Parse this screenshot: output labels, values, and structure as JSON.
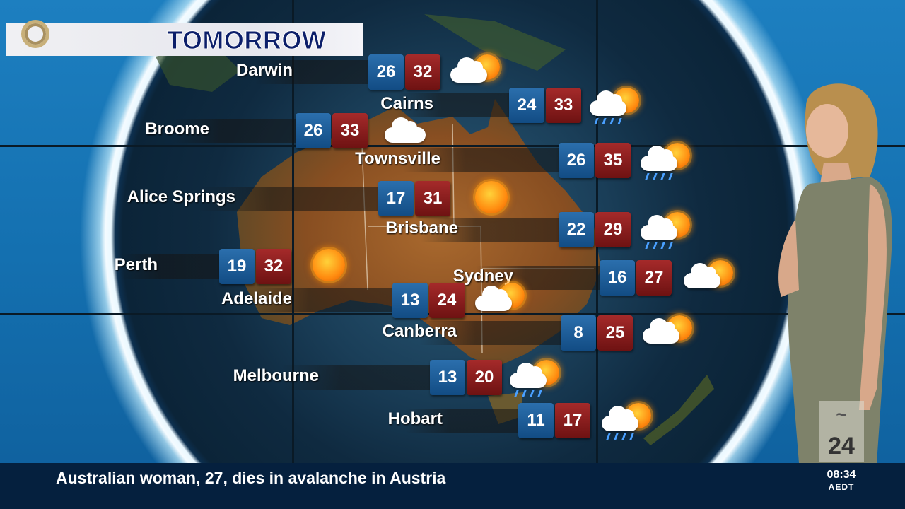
{
  "title": "TOMORROW",
  "cities": [
    {
      "name": "Darwin",
      "min": "26",
      "max": "32",
      "icon": "partly-cloudy-icon"
    },
    {
      "name": "Cairns",
      "min": "24",
      "max": "33",
      "icon": "showers-sun-icon"
    },
    {
      "name": "Broome",
      "min": "26",
      "max": "33",
      "icon": "cloudy-icon"
    },
    {
      "name": "Townsville",
      "min": "26",
      "max": "35",
      "icon": "showers-sun-icon"
    },
    {
      "name": "Alice Springs",
      "min": "17",
      "max": "31",
      "icon": "sunny-icon"
    },
    {
      "name": "Brisbane",
      "min": "22",
      "max": "29",
      "icon": "showers-sun-icon"
    },
    {
      "name": "Perth",
      "min": "19",
      "max": "32",
      "icon": "sunny-icon"
    },
    {
      "name": "Sydney",
      "min": "16",
      "max": "27",
      "icon": "partly-cloudy-icon"
    },
    {
      "name": "Adelaide",
      "min": "13",
      "max": "24",
      "icon": "partly-cloudy-icon"
    },
    {
      "name": "Canberra",
      "min": "8",
      "max": "25",
      "icon": "partly-cloudy-icon"
    },
    {
      "name": "Melbourne",
      "min": "13",
      "max": "20",
      "icon": "showers-sun-icon"
    },
    {
      "name": "Hobart",
      "min": "11",
      "max": "17",
      "icon": "showers-sun-icon"
    }
  ],
  "ticker": {
    "headline": "Australian woman, 27, dies in avalanche in Austria",
    "time": "08:34",
    "timezone": "AEDT"
  },
  "watermark": {
    "channel": "24"
  },
  "colors": {
    "min_box": "#1f5f9c",
    "max_box": "#8c1d1d",
    "title_text": "#0c1f6a",
    "ticker_bg": "#05203e"
  }
}
